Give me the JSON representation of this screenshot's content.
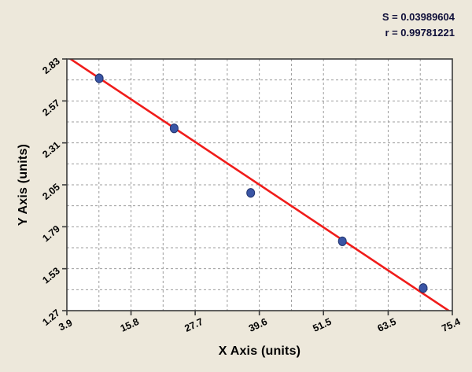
{
  "stats": {
    "s_label": "S = 0.03989604",
    "r_label": "r = 0.99781221"
  },
  "chart_data": {
    "type": "scatter",
    "title": "",
    "xlabel": "X Axis (units)",
    "ylabel": "Y Axis (units)",
    "xlim": [
      3.9,
      75.4
    ],
    "ylim": [
      1.27,
      2.83
    ],
    "x_ticks": [
      "3.9",
      "15.8",
      "27.7",
      "39.6",
      "51.5",
      "63.5",
      "75.4"
    ],
    "y_ticks": [
      "1.27",
      "1.53",
      "1.79",
      "2.05",
      "2.31",
      "2.57",
      "2.83"
    ],
    "grid": {
      "style": "dashed",
      "minor": "midpoints",
      "color": "#9c9c9c"
    },
    "points": [
      [
        9.9,
        2.71
      ],
      [
        23.8,
        2.4
      ],
      [
        38.0,
        2.0
      ],
      [
        55.0,
        1.7
      ],
      [
        70.0,
        1.41
      ]
    ],
    "regression_line": {
      "x1": 3.9,
      "y1": 2.845,
      "x2": 75.4,
      "y2": 1.255,
      "color": "#F01C1A"
    },
    "point_color": "#3A55A5",
    "point_outline": "#22346E",
    "legend": null
  },
  "colors": {
    "panel_bg": "#EDE8DB",
    "plot_bg": "#FFFFFF",
    "border": "#3b3b3b",
    "stats_text": "#10103A",
    "text": "#000000"
  }
}
